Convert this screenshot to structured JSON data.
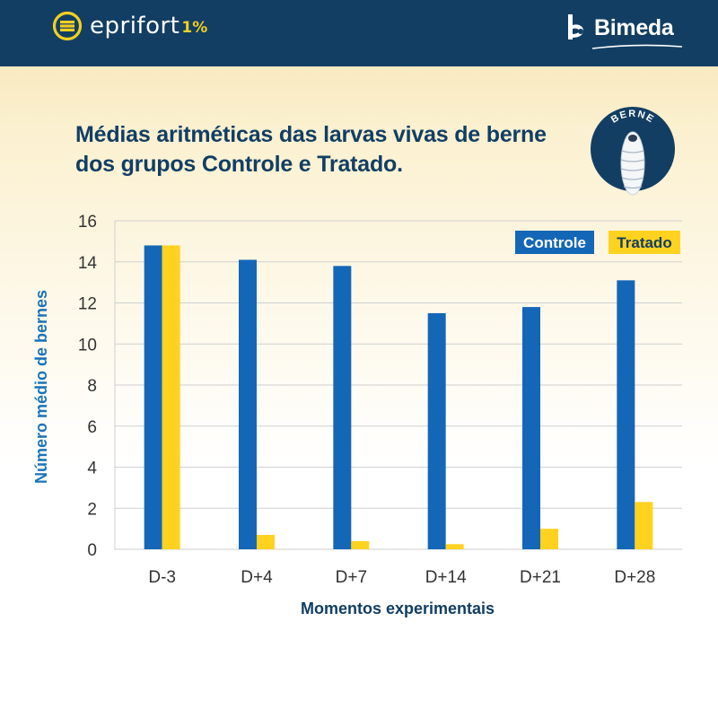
{
  "brand": {
    "name": "eprifort",
    "strength": "1%"
  },
  "company": {
    "name": "Bimeda"
  },
  "badge": {
    "label": "BERNE"
  },
  "colors": {
    "header_bg": "#123e63",
    "controle": "#1467b6",
    "tratado": "#ffd21f",
    "title_text": "#123e63",
    "ylabel_text": "#1a73b8"
  },
  "chart_data": {
    "type": "bar",
    "title": "Médias aritméticas das larvas vivas de berne dos grupos Controle e Tratado.",
    "title_lines": [
      "Médias aritméticas das larvas vivas de berne",
      "dos grupos Controle e Tratado."
    ],
    "xlabel": "Momentos experimentais",
    "ylabel": "Número médio de bernes",
    "categories": [
      "D-3",
      "D+4",
      "D+7",
      "D+14",
      "D+21",
      "D+28"
    ],
    "series": [
      {
        "name": "Controle",
        "color": "#1467b6",
        "values": [
          14.8,
          14.1,
          13.8,
          11.5,
          11.8,
          13.1
        ]
      },
      {
        "name": "Tratado",
        "color": "#ffd21f",
        "values": [
          14.8,
          0.7,
          0.4,
          0.25,
          1.0,
          2.3
        ]
      }
    ],
    "ylim": [
      0,
      16
    ],
    "yticks": [
      0,
      2,
      4,
      6,
      8,
      10,
      12,
      14,
      16
    ],
    "grid": true,
    "legend": "top-right"
  }
}
